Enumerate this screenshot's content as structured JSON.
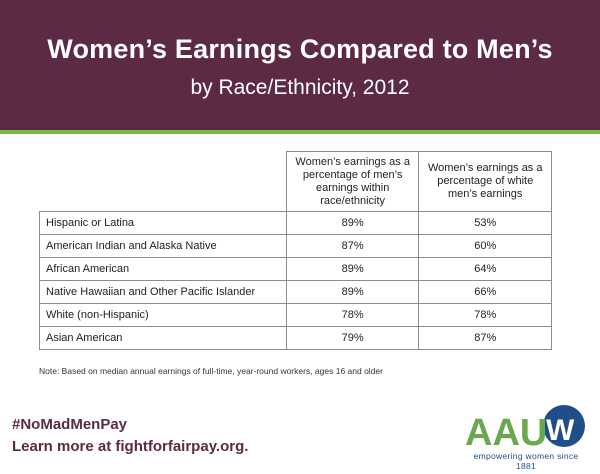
{
  "header": {
    "title": "Women’s Earnings Compared to Men’s",
    "subtitle": "by Race/Ethnicity, 2012"
  },
  "table": {
    "columns": [
      "Women’s earnings as a percentage of men’s earnings within race/ethnicity",
      "Women’s earnings as a percentage of white men’s earnings"
    ],
    "rows": [
      {
        "label": "Hispanic or Latina",
        "within": "89%",
        "white": "53%"
      },
      {
        "label": "American Indian and Alaska Native",
        "within": "87%",
        "white": "60%"
      },
      {
        "label": "African American",
        "within": "89%",
        "white": "64%"
      },
      {
        "label": "Native Hawaiian and Other Pacific Islander",
        "within": "89%",
        "white": "66%"
      },
      {
        "label": "White (non-Hispanic)",
        "within": "78%",
        "white": "78%"
      },
      {
        "label": "Asian American",
        "within": "79%",
        "white": "87%"
      }
    ]
  },
  "note": "Note: Based on median annual earnings of full-time, year-round workers, ages 16 and older",
  "footer": {
    "hashtag": "#NoMadMenPay",
    "learn_more": "Learn more at fightforfairpay.org."
  },
  "logo": {
    "wordmark": "AAUW",
    "tagline": "empowering women since 1881"
  },
  "colors": {
    "header_bg": "#5c2a45",
    "accent_green": "#7ab648",
    "logo_green": "#6aa84f",
    "logo_blue": "#1f4e8a"
  }
}
